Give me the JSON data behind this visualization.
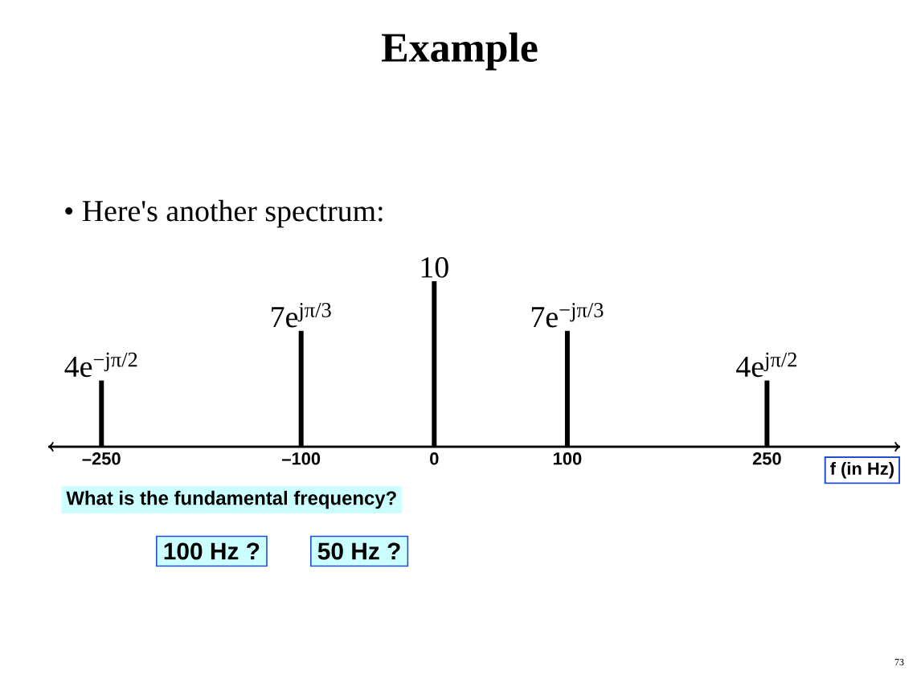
{
  "chart_data": {
    "type": "bar",
    "title": "Example",
    "subtitle": "• Here's another spectrum:",
    "x": [
      -250,
      -100,
      0,
      100,
      250
    ],
    "values": [
      4,
      7,
      10,
      7,
      4
    ],
    "value_labels": [
      "4e$^{−jπ/2}$",
      "7e$^{jπ/3}$",
      "10",
      "7e$^{−jπ/3}$",
      "4e$^{jπ/2}$"
    ],
    "color": "#000000",
    "xlim": [
      -290,
      350
    ],
    "xticks": [
      {
        "value": -250,
        "label": "–250"
      },
      {
        "value": -100,
        "label": "–100"
      },
      0,
      100,
      {
        "value": 250,
        "label": "250"
      }
    ],
    "xlabel": "f (in Hz)",
    "tick_labels": "x",
    "marker": "none",
    "annotations": [
      "What is the fundamental frequency?",
      "100 Hz ?",
      "50 Hz ?",
      "73"
    ]
  }
}
